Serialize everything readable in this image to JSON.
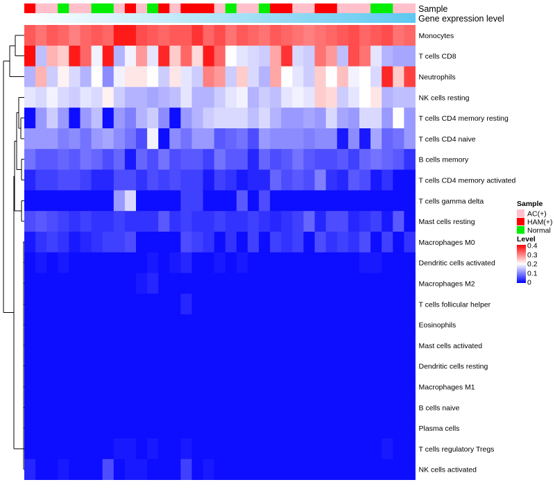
{
  "chart_data": {
    "type": "heatmap",
    "annotation_labels": {
      "sample": "Sample",
      "expression": "Gene expression level"
    },
    "sample_legend": {
      "title": "Sample",
      "groups": [
        {
          "name": "AC(+)",
          "color": "#FFC0CB"
        },
        {
          "name": "HAM(+)",
          "color": "#FF0000"
        },
        {
          "name": "Normal",
          "color": "#00EE00"
        }
      ]
    },
    "level_legend": {
      "title": "Level",
      "ticks": [
        "0.4",
        "0.3",
        "0.2",
        "0.1",
        "0"
      ],
      "min": 0,
      "max": 0.4
    },
    "palette": {
      "low": "#0000FF",
      "mid": "#FFFFFF",
      "high": "#FF0000",
      "midpoint": 0.2
    },
    "expression_bar": {
      "from": "#ffffff",
      "to": "#5ec8f0"
    },
    "samples": [
      "HAM(+)",
      "AC(+)",
      "AC(+)",
      "Normal",
      "AC(+)",
      "AC(+)",
      "Normal",
      "Normal",
      "AC(+)",
      "HAM(+)",
      "AC(+)",
      "Normal",
      "HAM(+)",
      "AC(+)",
      "HAM(+)",
      "HAM(+)",
      "HAM(+)",
      "AC(+)",
      "Normal",
      "AC(+)",
      "AC(+)",
      "Normal",
      "HAM(+)",
      "HAM(+)",
      "AC(+)",
      "AC(+)",
      "HAM(+)",
      "HAM(+)",
      "AC(+)",
      "AC(+)",
      "AC(+)",
      "Normal",
      "Normal",
      "AC(+)",
      "AC(+)"
    ],
    "rows": [
      {
        "label": "Monocytes",
        "values": [
          0.33,
          0.31,
          0.33,
          0.32,
          0.3,
          0.32,
          0.33,
          0.32,
          0.38,
          0.38,
          0.34,
          0.33,
          0.32,
          0.33,
          0.33,
          0.36,
          0.32,
          0.34,
          0.31,
          0.33,
          0.32,
          0.31,
          0.33,
          0.32,
          0.31,
          0.3,
          0.31,
          0.32,
          0.33,
          0.34,
          0.32,
          0.33,
          0.34,
          0.31,
          0.32
        ]
      },
      {
        "label": "T cells CD8",
        "values": [
          0.39,
          0.15,
          0.26,
          0.24,
          0.38,
          0.32,
          0.19,
          0.38,
          0.14,
          0.19,
          0.28,
          0.18,
          0.37,
          0.24,
          0.32,
          0.23,
          0.38,
          0.32,
          0.2,
          0.18,
          0.17,
          0.16,
          0.27,
          0.36,
          0.17,
          0.16,
          0.31,
          0.28,
          0.15,
          0.34,
          0.31,
          0.18,
          0.14,
          0.13,
          0.13
        ]
      },
      {
        "label": "Neutrophils",
        "values": [
          0.14,
          0.26,
          0.16,
          0.21,
          0.17,
          0.14,
          0.2,
          0.11,
          0.19,
          0.22,
          0.22,
          0.2,
          0.16,
          0.22,
          0.18,
          0.16,
          0.3,
          0.28,
          0.16,
          0.24,
          0.17,
          0.14,
          0.27,
          0.2,
          0.18,
          0.16,
          0.24,
          0.2,
          0.25,
          0.19,
          0.2,
          0.17,
          0.37,
          0.24,
          0.35
        ]
      },
      {
        "label": "NK cells resting",
        "values": [
          0.18,
          0.17,
          0.19,
          0.17,
          0.16,
          0.18,
          0.17,
          0.21,
          0.16,
          0.14,
          0.14,
          0.13,
          0.14,
          0.15,
          0.18,
          0.14,
          0.14,
          0.16,
          0.18,
          0.19,
          0.14,
          0.16,
          0.15,
          0.18,
          0.19,
          0.18,
          0.24,
          0.23,
          0.16,
          0.18,
          0.2,
          0.22,
          0.14,
          0.15,
          0.15
        ]
      },
      {
        "label": "T cells CD4 memory resting",
        "values": [
          0.01,
          0.12,
          0.16,
          0.12,
          0.01,
          0.12,
          0.15,
          0.01,
          0.12,
          0.1,
          0.14,
          0.16,
          0.11,
          0.01,
          0.12,
          0.14,
          0.16,
          0.17,
          0.17,
          0.17,
          0.15,
          0.17,
          0.14,
          0.12,
          0.12,
          0.13,
          0.12,
          0.17,
          0.13,
          0.12,
          0.17,
          0.17,
          0.12,
          0.2,
          0.12
        ]
      },
      {
        "label": "T cells CD4 naive",
        "values": [
          0.12,
          0.12,
          0.12,
          0.1,
          0.11,
          0.09,
          0.12,
          0.13,
          0.11,
          0.09,
          0.06,
          0.19,
          0.01,
          0.11,
          0.09,
          0.12,
          0.12,
          0.07,
          0.08,
          0.09,
          0.06,
          0.12,
          0.11,
          0.11,
          0.11,
          0.1,
          0.11,
          0.11,
          0.02,
          0.11,
          0.02,
          0.13,
          0.08,
          0.09,
          0.12
        ]
      },
      {
        "label": "B cells memory",
        "values": [
          0.09,
          0.07,
          0.07,
          0.08,
          0.07,
          0.09,
          0.08,
          0.06,
          0.08,
          0.02,
          0.08,
          0.06,
          0.09,
          0.06,
          0.07,
          0.07,
          0.05,
          0.09,
          0.07,
          0.07,
          0.03,
          0.08,
          0.06,
          0.07,
          0.09,
          0.07,
          0.06,
          0.06,
          0.07,
          0.05,
          0.08,
          0.09,
          0.08,
          0.07,
          0.04
        ]
      },
      {
        "label": "T cells CD4 memory activated",
        "values": [
          0.03,
          0.05,
          0.05,
          0.06,
          0.06,
          0.05,
          0.03,
          0.03,
          0.06,
          0.06,
          0.04,
          0.06,
          0.05,
          0.06,
          0.05,
          0.05,
          0.02,
          0.05,
          0.04,
          0.02,
          0.03,
          0.03,
          0.08,
          0.06,
          0.07,
          0.06,
          0.1,
          0.04,
          0.03,
          0.07,
          0.06,
          0.02,
          0.04,
          0.01,
          0.01
        ]
      },
      {
        "label": "T cells gamma delta",
        "values": [
          0.01,
          0.01,
          0.01,
          0.01,
          0.01,
          0.01,
          0.01,
          0.01,
          0.12,
          0.17,
          0.01,
          0.01,
          0.01,
          0.01,
          0.05,
          0.05,
          0.01,
          0.01,
          0.01,
          0.07,
          0.01,
          0.06,
          0.01,
          0.01,
          0.01,
          0.01,
          0.01,
          0.01,
          0.01,
          0.01,
          0.01,
          0.01,
          0.01,
          0.01,
          0.01
        ]
      },
      {
        "label": "Mast cells resting",
        "values": [
          0.06,
          0.07,
          0.06,
          0.05,
          0.04,
          0.05,
          0.04,
          0.04,
          0.05,
          0.04,
          0.04,
          0.04,
          0.07,
          0.04,
          0.05,
          0.04,
          0.04,
          0.05,
          0.04,
          0.04,
          0.05,
          0.04,
          0.03,
          0.04,
          0.05,
          0.08,
          0.03,
          0.06,
          0.06,
          0.03,
          0.04,
          0.05,
          0.02,
          0.07,
          0.01
        ]
      },
      {
        "label": "Macrophages M0",
        "values": [
          0.02,
          0.04,
          0.05,
          0.04,
          0.02,
          0.03,
          0.04,
          0.05,
          0.05,
          0.06,
          0.01,
          0.01,
          0.01,
          0.01,
          0.06,
          0.05,
          0.04,
          0.01,
          0.04,
          0.01,
          0.05,
          0.01,
          0.05,
          0.04,
          0.05,
          0.01,
          0.06,
          0.04,
          0.05,
          0.04,
          0.06,
          0.01,
          0.05,
          0.01,
          0.04
        ]
      },
      {
        "label": "Dendritic cells activated",
        "values": [
          0.01,
          0.02,
          0.01,
          0.02,
          0.01,
          0.01,
          0.01,
          0.01,
          0.01,
          0.01,
          0.01,
          0.02,
          0.01,
          0.02,
          0.03,
          0.01,
          0.01,
          0.02,
          0.01,
          0.02,
          0.01,
          0.01,
          0.01,
          0.01,
          0.01,
          0.01,
          0.01,
          0.01,
          0.01,
          0.01,
          0.02,
          0.02,
          0.01,
          0.01,
          0.01
        ]
      },
      {
        "label": "Macrophages M2",
        "values": [
          0.01,
          0.01,
          0.01,
          0.01,
          0.01,
          0.01,
          0.01,
          0.01,
          0.01,
          0.01,
          0.02,
          0.03,
          0.01,
          0.01,
          0.01,
          0.01,
          0.01,
          0.01,
          0.01,
          0.01,
          0.01,
          0.01,
          0.01,
          0.01,
          0.01,
          0.01,
          0.01,
          0.01,
          0.01,
          0.01,
          0.01,
          0.01,
          0.01,
          0.01,
          0.01
        ]
      },
      {
        "label": "T cells follicular helper",
        "values": [
          0.01,
          0.01,
          0.01,
          0.01,
          0.01,
          0.01,
          0.01,
          0.01,
          0.01,
          0.01,
          0.01,
          0.01,
          0.01,
          0.01,
          0.03,
          0.01,
          0.01,
          0.01,
          0.01,
          0.01,
          0.01,
          0.01,
          0.01,
          0.01,
          0.01,
          0.01,
          0.01,
          0.01,
          0.01,
          0.01,
          0.01,
          0.01,
          0.01,
          0.01,
          0.01
        ]
      },
      {
        "label": "Eosinophils",
        "values": [
          0.01,
          0.01,
          0.01,
          0.01,
          0.01,
          0.01,
          0.01,
          0.01,
          0.01,
          0.01,
          0.01,
          0.01,
          0.01,
          0.01,
          0.01,
          0.01,
          0.01,
          0.01,
          0.01,
          0.01,
          0.01,
          0.01,
          0.01,
          0.01,
          0.01,
          0.01,
          0.01,
          0.01,
          0.01,
          0.01,
          0.01,
          0.01,
          0.01,
          0.01,
          0.01
        ]
      },
      {
        "label": "Mast cells activated",
        "values": [
          0.01,
          0.01,
          0.01,
          0.01,
          0.01,
          0.01,
          0.01,
          0.01,
          0.01,
          0.01,
          0.01,
          0.01,
          0.01,
          0.01,
          0.01,
          0.01,
          0.01,
          0.01,
          0.01,
          0.01,
          0.01,
          0.01,
          0.01,
          0.01,
          0.01,
          0.01,
          0.01,
          0.01,
          0.01,
          0.01,
          0.01,
          0.01,
          0.01,
          0.01,
          0.01
        ]
      },
      {
        "label": "Dendritic cells resting",
        "values": [
          0.01,
          0.01,
          0.01,
          0.01,
          0.01,
          0.01,
          0.01,
          0.01,
          0.01,
          0.01,
          0.01,
          0.01,
          0.01,
          0.01,
          0.01,
          0.01,
          0.01,
          0.01,
          0.01,
          0.01,
          0.01,
          0.01,
          0.01,
          0.01,
          0.01,
          0.01,
          0.01,
          0.01,
          0.01,
          0.01,
          0.01,
          0.01,
          0.01,
          0.01,
          0.01
        ]
      },
      {
        "label": "Macrophages M1",
        "values": [
          0.01,
          0.01,
          0.01,
          0.01,
          0.01,
          0.01,
          0.01,
          0.01,
          0.01,
          0.01,
          0.01,
          0.01,
          0.01,
          0.01,
          0.01,
          0.01,
          0.01,
          0.01,
          0.01,
          0.01,
          0.01,
          0.01,
          0.01,
          0.01,
          0.01,
          0.01,
          0.01,
          0.01,
          0.01,
          0.01,
          0.01,
          0.01,
          0.01,
          0.01,
          0.01
        ]
      },
      {
        "label": "B cells naive",
        "values": [
          0.01,
          0.01,
          0.01,
          0.01,
          0.01,
          0.01,
          0.01,
          0.01,
          0.01,
          0.01,
          0.01,
          0.01,
          0.01,
          0.01,
          0.01,
          0.01,
          0.01,
          0.01,
          0.01,
          0.01,
          0.01,
          0.01,
          0.01,
          0.01,
          0.01,
          0.01,
          0.01,
          0.01,
          0.01,
          0.01,
          0.01,
          0.01,
          0.01,
          0.01,
          0.01
        ]
      },
      {
        "label": "Plasma cells",
        "values": [
          0.01,
          0.01,
          0.01,
          0.01,
          0.01,
          0.01,
          0.01,
          0.01,
          0.01,
          0.01,
          0.01,
          0.01,
          0.01,
          0.01,
          0.01,
          0.01,
          0.01,
          0.01,
          0.01,
          0.01,
          0.01,
          0.01,
          0.01,
          0.01,
          0.01,
          0.01,
          0.01,
          0.01,
          0.01,
          0.01,
          0.01,
          0.01,
          0.01,
          0.01,
          0.01
        ]
      },
      {
        "label": "T cells regulatory  Tregs",
        "values": [
          0.01,
          0.01,
          0.01,
          0.01,
          0.01,
          0.01,
          0.01,
          0.01,
          0.02,
          0.02,
          0.01,
          0.02,
          0.01,
          0.01,
          0.02,
          0.01,
          0.01,
          0.01,
          0.01,
          0.01,
          0.01,
          0.01,
          0.01,
          0.01,
          0.01,
          0.01,
          0.01,
          0.01,
          0.01,
          0.01,
          0.01,
          0.01,
          0.02,
          0.01,
          0.01
        ]
      },
      {
        "label": "NK cells activated",
        "values": [
          0.03,
          0.01,
          0.01,
          0.02,
          0.01,
          0.01,
          0.01,
          0.06,
          0.01,
          0.02,
          0.02,
          0.01,
          0.01,
          0.01,
          0.05,
          0.01,
          0.02,
          0.01,
          0.01,
          0.01,
          0.01,
          0.01,
          0.01,
          0.01,
          0.01,
          0.01,
          0.01,
          0.01,
          0.01,
          0.01,
          0.01,
          0.01,
          0.01,
          0.01,
          0.01
        ]
      }
    ]
  }
}
